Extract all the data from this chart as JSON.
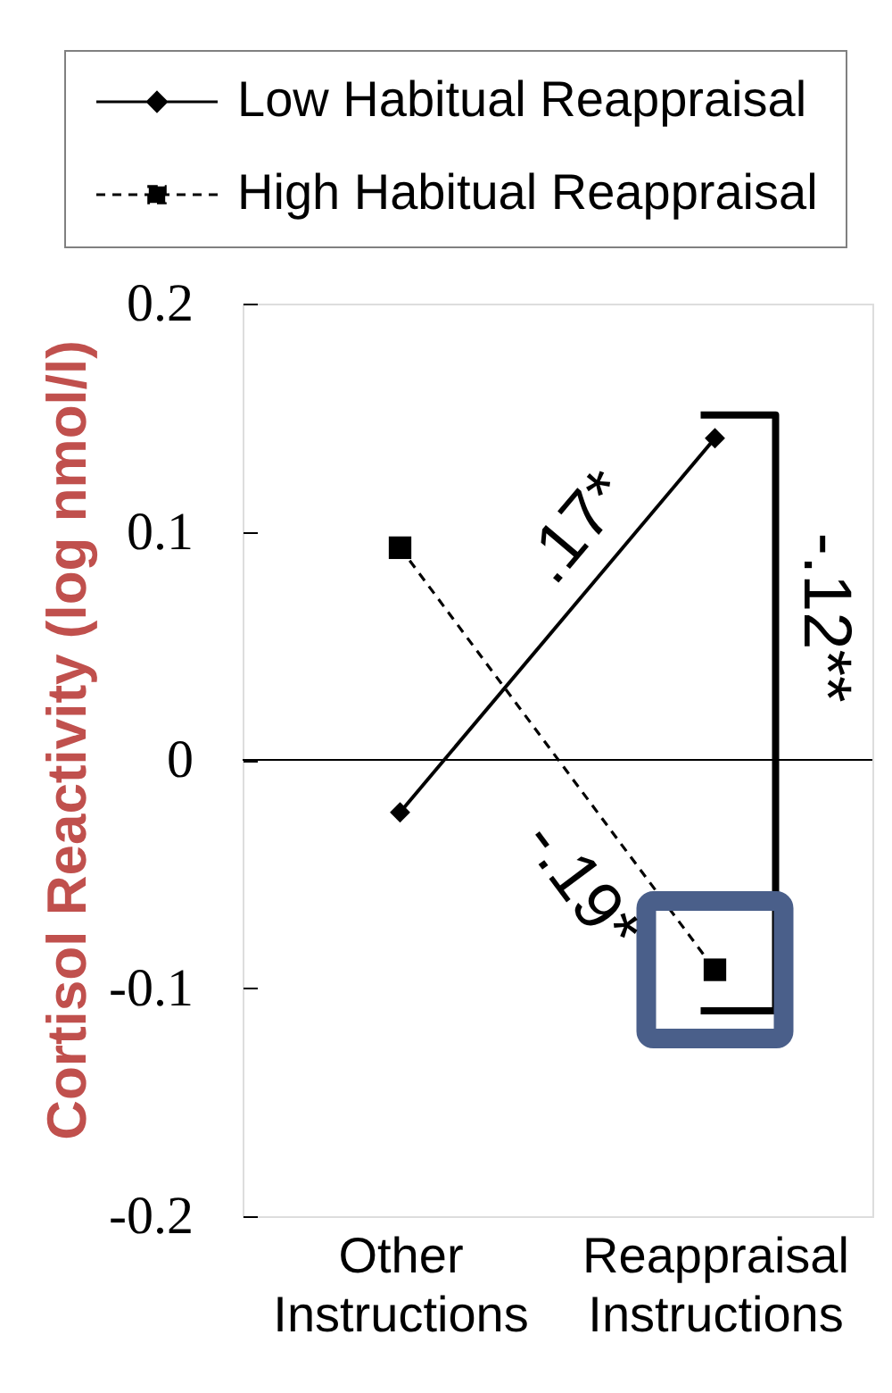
{
  "chart_data": {
    "type": "line",
    "categories": [
      "Other Instructions",
      "Reappraisal Instructions"
    ],
    "ylabel": "Cortisol Reactivity (log nmol/l)",
    "series": [
      {
        "name": "Low Habitual Reappraisal",
        "color": "#000000",
        "values": [
          -0.023,
          0.141
        ],
        "marker": "diamond",
        "line_style": "solid"
      },
      {
        "name": "High Habitual Reappraisal",
        "color": "#000000",
        "values": [
          0.093,
          -0.092
        ],
        "marker": "square",
        "line_style": "dashed"
      }
    ],
    "ylim": [
      -0.2,
      0.2
    ],
    "yticks": [
      -0.2,
      -0.1,
      0,
      0.1,
      0.2
    ],
    "ref_lines": [
      {
        "axis": "y",
        "value": 0,
        "color": "#000000"
      }
    ],
    "annotations": [
      ".17*",
      "-.19*",
      "-.12**"
    ],
    "legend": "top",
    "grid": false
  }
}
